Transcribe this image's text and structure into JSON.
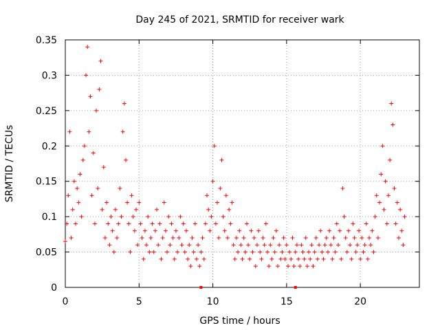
{
  "chart_data": {
    "type": "scatter",
    "title": "Day 245 of 2021, SRMTID for receiver wark",
    "xlabel": "GPS time / hours",
    "ylabel": "SRMTID / TECUs",
    "xlim": [
      0,
      24
    ],
    "ylim": [
      0,
      0.35
    ],
    "x_ticks": [
      0,
      5,
      10,
      15,
      20
    ],
    "x_tick_labels": [
      "0",
      "5",
      "10",
      "15",
      "20"
    ],
    "y_ticks": [
      0,
      0.05,
      0.1,
      0.15,
      0.2,
      0.25,
      0.3,
      0.35
    ],
    "y_tick_labels": [
      "0",
      "0.05",
      "0.1",
      "0.15",
      "0.2",
      "0.25",
      "0.3",
      "0.35"
    ],
    "grid": true,
    "marker": "+",
    "color": "#ff0000",
    "data_gap_markers_x": [
      9.2,
      15.6
    ],
    "series": [
      {
        "name": "SRMTID",
        "x": [
          0.0,
          0.1,
          0.2,
          0.3,
          0.4,
          0.5,
          0.6,
          0.7,
          0.8,
          0.9,
          1.0,
          1.1,
          1.2,
          1.3,
          1.4,
          1.5,
          1.6,
          1.7,
          1.8,
          1.9,
          2.0,
          2.1,
          2.2,
          2.3,
          2.4,
          2.5,
          2.6,
          2.7,
          2.8,
          2.9,
          3.0,
          3.1,
          3.2,
          3.3,
          3.4,
          3.5,
          3.6,
          3.7,
          3.8,
          3.9,
          4.0,
          4.1,
          4.2,
          4.3,
          4.4,
          4.5,
          4.6,
          4.7,
          4.8,
          4.9,
          5.0,
          5.1,
          5.2,
          5.3,
          5.4,
          5.5,
          5.6,
          5.7,
          5.8,
          5.9,
          6.0,
          6.1,
          6.2,
          6.3,
          6.4,
          6.5,
          6.6,
          6.7,
          6.8,
          6.9,
          7.0,
          7.1,
          7.2,
          7.3,
          7.4,
          7.5,
          7.6,
          7.7,
          7.8,
          7.9,
          8.0,
          8.1,
          8.2,
          8.3,
          8.4,
          8.5,
          8.6,
          8.7,
          8.8,
          8.9,
          9.0,
          9.1,
          9.2,
          9.3,
          9.4,
          9.5,
          9.6,
          9.7,
          9.8,
          9.9,
          10.0,
          10.1,
          10.2,
          10.3,
          10.4,
          10.5,
          10.6,
          10.7,
          10.8,
          10.9,
          11.0,
          11.1,
          11.2,
          11.3,
          11.4,
          11.5,
          11.6,
          11.7,
          11.8,
          11.9,
          12.0,
          12.1,
          12.2,
          12.3,
          12.4,
          12.5,
          12.6,
          12.7,
          12.8,
          12.9,
          13.0,
          13.1,
          13.2,
          13.3,
          13.4,
          13.5,
          13.6,
          13.7,
          13.8,
          13.9,
          14.0,
          14.1,
          14.2,
          14.3,
          14.4,
          14.5,
          14.6,
          14.7,
          14.8,
          14.9,
          15.0,
          15.1,
          15.2,
          15.3,
          15.4,
          15.5,
          15.6,
          15.7,
          15.8,
          15.9,
          16.0,
          16.1,
          16.2,
          16.3,
          16.4,
          16.5,
          16.6,
          16.7,
          16.8,
          16.9,
          17.0,
          17.1,
          17.2,
          17.3,
          17.4,
          17.5,
          17.6,
          17.7,
          17.8,
          17.9,
          18.0,
          18.1,
          18.2,
          18.3,
          18.4,
          18.5,
          18.6,
          18.7,
          18.8,
          18.9,
          19.0,
          19.1,
          19.2,
          19.3,
          19.4,
          19.5,
          19.6,
          19.7,
          19.8,
          19.9,
          20.0,
          20.1,
          20.2,
          20.3,
          20.4,
          20.5,
          20.6,
          20.7,
          20.8,
          20.9,
          21.0,
          21.1,
          21.2,
          21.3,
          21.4,
          21.5,
          21.6,
          21.7,
          21.8,
          21.9,
          22.0,
          22.1,
          22.2,
          22.3,
          22.4,
          22.5,
          22.6,
          22.7,
          22.8,
          22.9,
          23.0
        ],
        "y": [
          0.065,
          0.09,
          0.13,
          0.22,
          0.07,
          0.11,
          0.15,
          0.09,
          0.14,
          0.12,
          0.16,
          0.1,
          0.18,
          0.2,
          0.3,
          0.34,
          0.22,
          0.27,
          0.13,
          0.19,
          0.09,
          0.25,
          0.14,
          0.28,
          0.32,
          0.11,
          0.17,
          0.07,
          0.12,
          0.09,
          0.06,
          0.1,
          0.08,
          0.05,
          0.11,
          0.07,
          0.09,
          0.14,
          0.1,
          0.22,
          0.26,
          0.18,
          0.12,
          0.09,
          0.05,
          0.13,
          0.1,
          0.08,
          0.11,
          0.06,
          0.12,
          0.09,
          0.07,
          0.04,
          0.08,
          0.06,
          0.1,
          0.05,
          0.07,
          0.09,
          0.05,
          0.08,
          0.11,
          0.06,
          0.09,
          0.04,
          0.07,
          0.12,
          0.08,
          0.05,
          0.1,
          0.06,
          0.09,
          0.07,
          0.04,
          0.08,
          0.05,
          0.07,
          0.1,
          0.06,
          0.09,
          0.05,
          0.08,
          0.04,
          0.06,
          0.03,
          0.07,
          0.05,
          0.09,
          0.04,
          0.06,
          0.03,
          0.05,
          0.07,
          0.04,
          0.09,
          0.13,
          0.11,
          0.08,
          0.1,
          0.15,
          0.2,
          0.09,
          0.12,
          0.07,
          0.14,
          0.18,
          0.1,
          0.08,
          0.13,
          0.07,
          0.11,
          0.09,
          0.12,
          0.06,
          0.04,
          0.07,
          0.05,
          0.08,
          0.06,
          0.04,
          0.07,
          0.05,
          0.09,
          0.06,
          0.04,
          0.08,
          0.05,
          0.07,
          0.03,
          0.06,
          0.08,
          0.05,
          0.04,
          0.07,
          0.06,
          0.09,
          0.05,
          0.03,
          0.06,
          0.04,
          0.07,
          0.05,
          0.08,
          0.03,
          0.06,
          0.04,
          0.05,
          0.07,
          0.04,
          0.06,
          0.03,
          0.05,
          0.04,
          0.07,
          0.03,
          0.05,
          0.06,
          0.04,
          0.03,
          0.06,
          0.05,
          0.04,
          0.07,
          0.03,
          0.05,
          0.04,
          0.06,
          0.03,
          0.05,
          0.07,
          0.04,
          0.06,
          0.08,
          0.05,
          0.04,
          0.06,
          0.07,
          0.05,
          0.08,
          0.06,
          0.04,
          0.07,
          0.05,
          0.09,
          0.06,
          0.08,
          0.04,
          0.14,
          0.1,
          0.07,
          0.05,
          0.08,
          0.06,
          0.04,
          0.09,
          0.07,
          0.05,
          0.06,
          0.08,
          0.04,
          0.07,
          0.05,
          0.06,
          0.09,
          0.04,
          0.07,
          0.06,
          0.08,
          0.05,
          0.1,
          0.13,
          0.07,
          0.12,
          0.16,
          0.2,
          0.11,
          0.15,
          0.09,
          0.13,
          0.18,
          0.26,
          0.23,
          0.14,
          0.09,
          0.12,
          0.07,
          0.11,
          0.08,
          0.06,
          0.1
        ]
      }
    ]
  }
}
